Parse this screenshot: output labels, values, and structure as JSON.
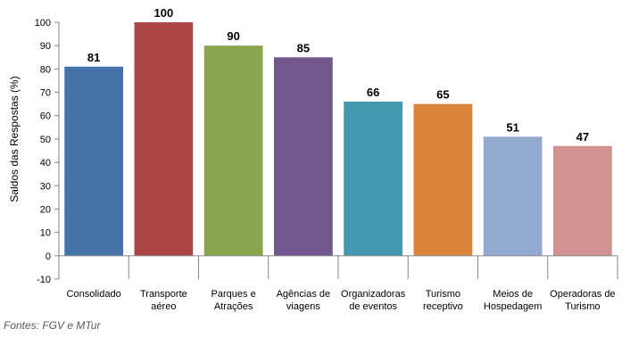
{
  "chart_data": {
    "type": "bar",
    "categories": [
      [
        "Consolidado"
      ],
      [
        "Transporte",
        "aéreo"
      ],
      [
        "Parques e",
        "Atrações"
      ],
      [
        "Agências de",
        "viagens"
      ],
      [
        "Organizadoras",
        "de eventos"
      ],
      [
        "Turismo",
        "receptivo"
      ],
      [
        "Meios de",
        "Hospedagem"
      ],
      [
        "Operadoras de",
        "Turismo"
      ]
    ],
    "values": [
      81,
      100,
      90,
      85,
      66,
      65,
      51,
      47
    ],
    "data_labels": [
      "81",
      "100",
      "90",
      "85",
      "66",
      "65",
      "51",
      "47"
    ],
    "colors": [
      "#4572A7",
      "#AA4643",
      "#89A54E",
      "#71588F",
      "#4198AF",
      "#DB843D",
      "#93A9CF",
      "#D19392"
    ],
    "ylabel": "Saldos das Respostas (%)",
    "ylim": [
      -10,
      100
    ],
    "yticks": [
      -10,
      0,
      10,
      20,
      30,
      40,
      50,
      60,
      70,
      80,
      90,
      100
    ],
    "grid": false,
    "legend": "none"
  },
  "source_note": "Fontes: FGV e MTur"
}
